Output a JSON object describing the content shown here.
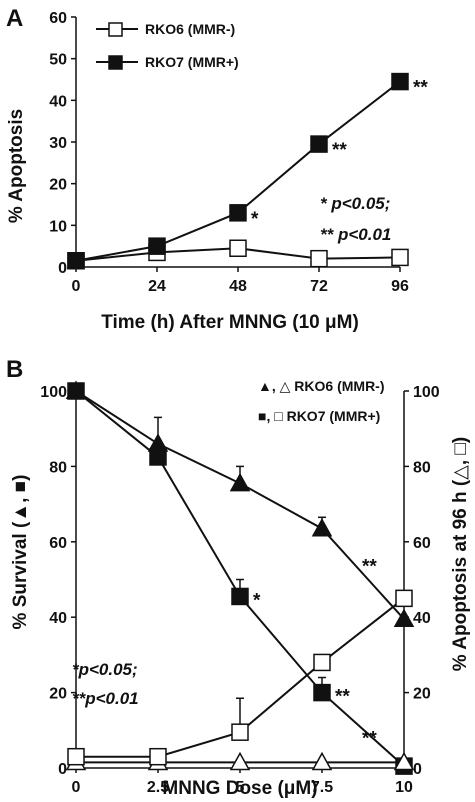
{
  "chart_data": [
    {
      "panel": "A",
      "type": "line",
      "xlabel": "Time (h) After MNNG (10 μM)",
      "ylabel": "% Apoptosis",
      "x": [
        0,
        24,
        48,
        72,
        96
      ],
      "xlim": [
        0,
        96
      ],
      "ylim": [
        0,
        60
      ],
      "xticks": [
        "0",
        "24",
        "48",
        "72",
        "96"
      ],
      "yticks": [
        "0",
        "10",
        "20",
        "30",
        "40",
        "50",
        "60"
      ],
      "legend_position": "top-left",
      "series": [
        {
          "name": "RKO6 (MMR-)",
          "marker": "open-square",
          "values": [
            1.5,
            3.5,
            4.5,
            2,
            2.3
          ],
          "errors": [
            0,
            0,
            1,
            0,
            0
          ]
        },
        {
          "name": "RKO7 (MMR+)",
          "marker": "filled-square",
          "values": [
            1.5,
            5,
            13,
            29.5,
            44.5
          ],
          "errors": [
            0,
            1.5,
            0,
            0,
            0
          ]
        }
      ],
      "significance_marks": [
        {
          "x": 48,
          "y": 13,
          "label": "*"
        },
        {
          "x": 72,
          "y": 29.5,
          "label": "**"
        },
        {
          "x": 96,
          "y": 44.5,
          "label": "**"
        }
      ],
      "annotation_lines": [
        "* p<0.05;",
        "** p<0.01"
      ]
    },
    {
      "panel": "B",
      "type": "line",
      "xlabel": "MNNG Dose (μM)",
      "ylabel": "% Survival (▲, ■)",
      "y2label": "% Apoptosis at 96 h (△, □)",
      "x": [
        0,
        2.5,
        5,
        7.5,
        10
      ],
      "xlim": [
        0,
        10
      ],
      "ylim": [
        0,
        100
      ],
      "y2lim": [
        0,
        100
      ],
      "xticks": [
        "0",
        "2.5",
        "5",
        "7.5",
        "10"
      ],
      "yticks": [
        "0",
        "20",
        "40",
        "60",
        "80",
        "100"
      ],
      "y2ticks": [
        "0",
        "20",
        "40",
        "60",
        "80",
        "100"
      ],
      "legend_position": "top-right",
      "legend": [
        {
          "label": "▲, △ RKO6 (MMR-)"
        },
        {
          "label": "■, □ RKO7 (MMR+)"
        }
      ],
      "series": [
        {
          "name": "RKO6 survival",
          "marker": "filled-triangle",
          "axis": "left",
          "values": [
            100,
            86,
            75.5,
            63.5,
            39.5
          ],
          "errors": [
            0,
            7,
            4.5,
            3,
            0
          ]
        },
        {
          "name": "RKO7 survival",
          "marker": "filled-square",
          "axis": "left",
          "values": [
            100,
            82.5,
            45.5,
            20,
            0.5
          ],
          "errors": [
            0,
            0,
            4.5,
            4,
            0
          ]
        },
        {
          "name": "RKO6 apoptosis",
          "marker": "open-triangle",
          "axis": "right",
          "values": [
            1.5,
            1.5,
            1.5,
            1.5,
            1.5
          ],
          "errors": [
            0,
            0,
            0,
            0,
            0
          ]
        },
        {
          "name": "RKO7 apoptosis",
          "marker": "open-square",
          "axis": "right",
          "values": [
            3,
            3,
            9.5,
            28,
            45
          ],
          "errors": [
            0,
            0,
            9,
            0,
            0
          ]
        }
      ],
      "significance_marks": [
        {
          "x": 5,
          "y": 45.5,
          "label": "*"
        },
        {
          "x": 7.5,
          "y": 20,
          "label": "**"
        },
        {
          "x": 10,
          "y": 54,
          "label": "**"
        },
        {
          "x": 10,
          "y": 10,
          "label": "**"
        }
      ],
      "annotation_lines": [
        "*p<0.05;",
        "**p<0.01"
      ]
    }
  ]
}
